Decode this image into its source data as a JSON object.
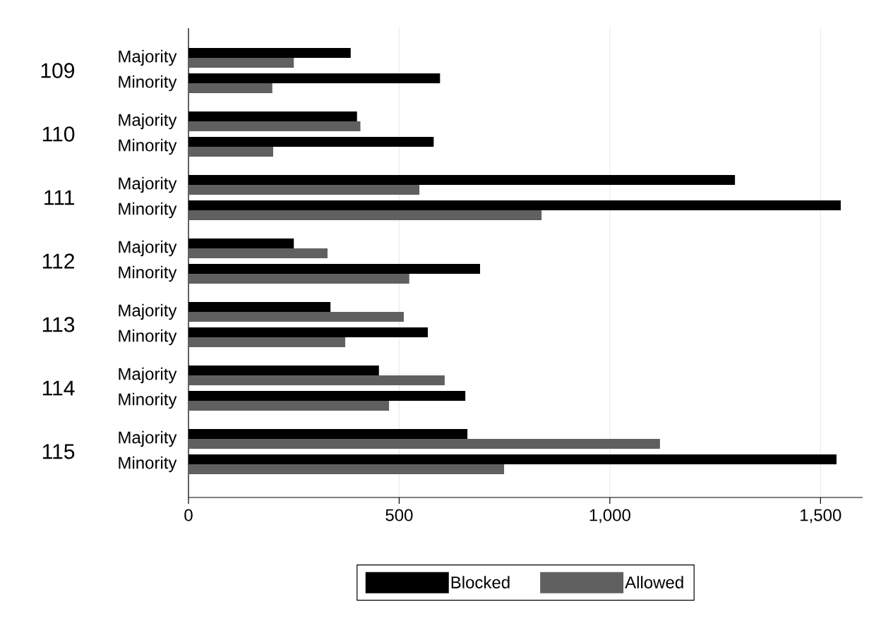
{
  "chart_data": {
    "type": "bar",
    "orientation": "horizontal",
    "categories": [
      "Majority",
      "Minority",
      "Majority",
      "Minority",
      "Majority",
      "Minority",
      "Majority",
      "Minority",
      "Majority",
      "Minority",
      "Majority",
      "Minority",
      "Majority",
      "Minority"
    ],
    "series": [
      {
        "name": "Blocked",
        "color": "#000000",
        "values": [
          385,
          597,
          400,
          582,
          1297,
          1548,
          250,
          692,
          337,
          568,
          452,
          657,
          662,
          1538
        ]
      },
      {
        "name": "Allowed",
        "color": "#606060",
        "values": [
          250,
          199,
          408,
          201,
          548,
          838,
          330,
          524,
          511,
          372,
          608,
          476,
          1119,
          749
        ]
      }
    ],
    "xlim": [
      0,
      1600
    ],
    "xticks": [
      0,
      500,
      {
        "value": 1000,
        "label": "1,000"
      },
      {
        "value": 1500,
        "label": "1,500"
      }
    ],
    "grid": "x",
    "legend": "bottom",
    "annotations": [
      "109",
      "110",
      "111",
      "112",
      "113",
      "114",
      "115"
    ]
  }
}
